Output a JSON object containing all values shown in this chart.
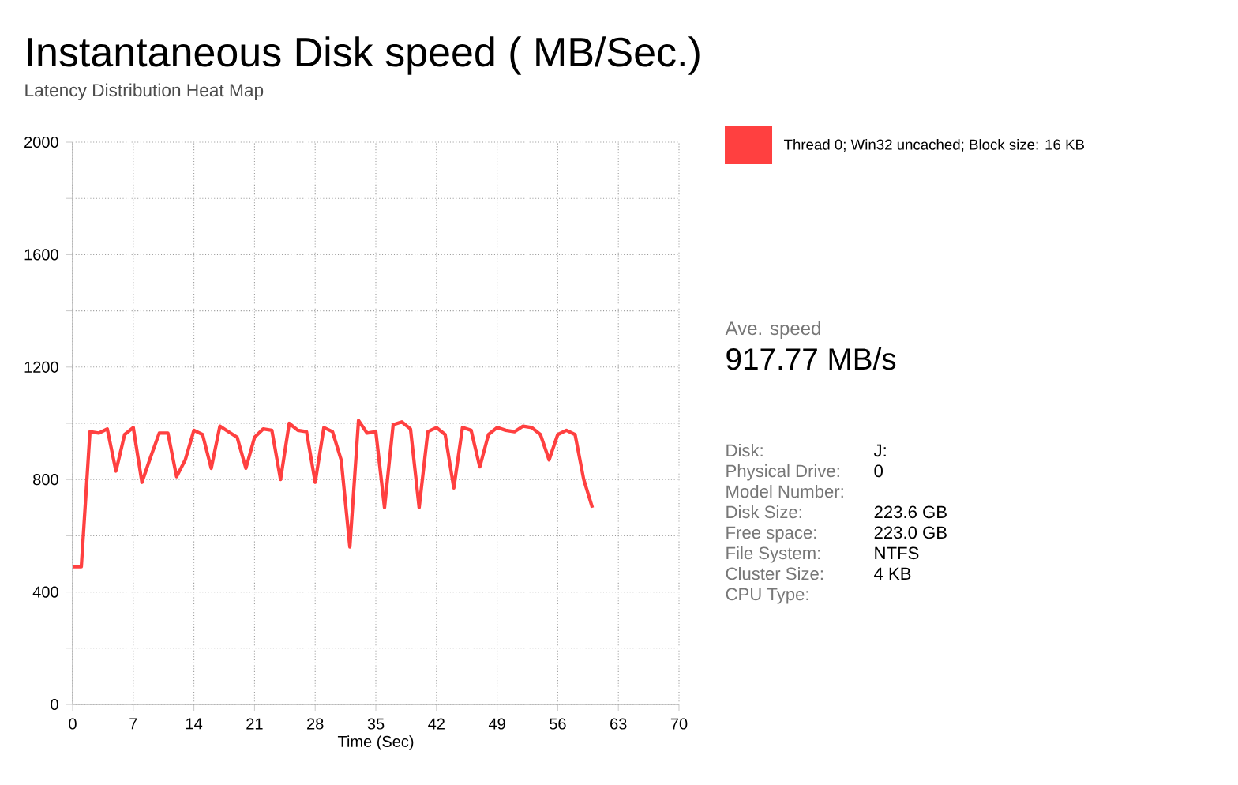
{
  "chart_data": {
    "type": "line",
    "title": "Instantaneous Disk speed ( MB/Sec.)",
    "subtitle": "Latency Distribution Heat Map",
    "xlabel": "Time (Sec)",
    "x": [
      0,
      1,
      2,
      3,
      4,
      5,
      6,
      7,
      8,
      9,
      10,
      11,
      12,
      13,
      14,
      15,
      16,
      17,
      18,
      19,
      20,
      21,
      22,
      23,
      24,
      25,
      26,
      27,
      28,
      29,
      30,
      31,
      32,
      33,
      34,
      35,
      36,
      37,
      38,
      39,
      40,
      41,
      42,
      43,
      44,
      45,
      46,
      47,
      48,
      49,
      50,
      51,
      52,
      53,
      54,
      55,
      56,
      57,
      58,
      59,
      60
    ],
    "series": [
      {
        "color": "#ff4040",
        "values": [
          490,
          490,
          970,
          965,
          980,
          830,
          960,
          985,
          790,
          880,
          965,
          965,
          810,
          870,
          975,
          960,
          840,
          990,
          970,
          950,
          840,
          950,
          980,
          975,
          800,
          1000,
          975,
          970,
          790,
          985,
          970,
          870,
          560,
          1010,
          965,
          970,
          700,
          995,
          1005,
          980,
          700,
          970,
          985,
          960,
          770,
          985,
          975,
          845,
          960,
          985,
          975,
          970,
          990,
          985,
          960,
          870,
          960,
          975,
          960,
          800,
          700
        ]
      }
    ],
    "xlim": [
      0,
      70
    ],
    "xticks": [
      0,
      7,
      14,
      21,
      28,
      35,
      42,
      49,
      56,
      63,
      70
    ],
    "ylim": [
      0,
      2000
    ],
    "yticks": [
      0,
      {
        "value": 200,
        "label": null
      },
      400,
      {
        "value": 600,
        "label": null
      },
      800,
      {
        "value": 1000,
        "label": null
      },
      1200,
      {
        "value": 1400,
        "label": null
      },
      1600,
      {
        "value": 1800,
        "label": null
      },
      2000
    ],
    "grid": true,
    "marker": "none",
    "line_style": "solid",
    "annotations": [
      "Thread 0; Win32 uncached; Block size: 16 KB",
      "Ave. speed",
      "917.77 MB/s",
      "Disk:",
      "J:",
      "Physical Drive:",
      "0",
      "Model Number:",
      "Disk Size:",
      "223.6 GB",
      "Free space:",
      "223.0 GB",
      "File System:",
      "NTFS",
      "Cluster Size:",
      "4 KB",
      "CPU Type:"
    ]
  }
}
